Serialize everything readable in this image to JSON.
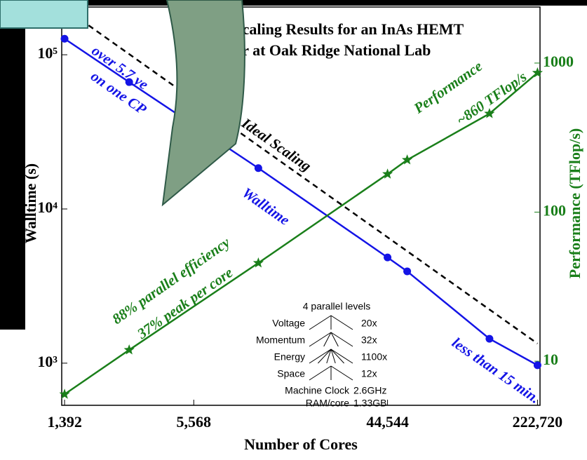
{
  "chart_data": {
    "type": "line",
    "title_lines": [
      "N Scaling Results for an InAs HEMT",
      "nar at Oak Ridge National Lab"
    ],
    "x_label": "Number of Cores",
    "y_label": "Walltime (s)",
    "y2_label": "Performance (TFlop/s)",
    "x": [
      1392,
      2784,
      11136,
      44544,
      55000,
      133000,
      222720
    ],
    "series": [
      {
        "name": "Walltime",
        "color": "#1414e6",
        "marker": "circle",
        "values": [
          127000,
          66500,
          18400,
          4850,
          3940,
          1440,
          970
        ]
      },
      {
        "name": "Performance",
        "color": "#1a7f1a",
        "marker": "star",
        "axis": "y2",
        "values": [
          6.0,
          11.9,
          45.6,
          180,
          224,
          458,
          860
        ]
      }
    ],
    "ideal": {
      "name": "Ideal Scaling",
      "color": "#000000",
      "x": [
        1392,
        222720
      ],
      "values": [
        200000,
        1340
      ]
    },
    "xlim": [
      1350,
      228800
    ],
    "ylim": [
      533,
      204000
    ],
    "y2lim": [
      5.06,
      2377
    ],
    "log_x": true,
    "log_y": true,
    "log_y2": true,
    "xticks": [
      {
        "value": 1392,
        "label": "1,392"
      },
      {
        "value": 5568,
        "label": "5,568"
      },
      {
        "value": 44544,
        "label": "44,544"
      },
      {
        "value": 222720,
        "label": "222,720"
      }
    ],
    "yticks": [
      {
        "value": 1000,
        "label": "10³"
      },
      {
        "value": 10000,
        "label": "10⁴"
      },
      {
        "value": 100000,
        "label": "10⁵"
      }
    ],
    "y2ticks": [
      10,
      100,
      1000
    ],
    "annotations": [
      "over 5.7 ye",
      "on one CP",
      "~860 TFlop/s",
      "88% parallel efficiency",
      "37% peak per core",
      "less than 15 min."
    ],
    "inset": {
      "title": "4 parallel levels",
      "levels": [
        [
          "Voltage",
          "20x"
        ],
        [
          "Momentum",
          "32x"
        ],
        [
          "Energy",
          "1100x"
        ],
        [
          "Space",
          "12x"
        ]
      ],
      "machine": [
        [
          "Machine Clock",
          "2.6GHz"
        ],
        [
          "RAM/core",
          "1.33GB"
        ]
      ]
    }
  }
}
